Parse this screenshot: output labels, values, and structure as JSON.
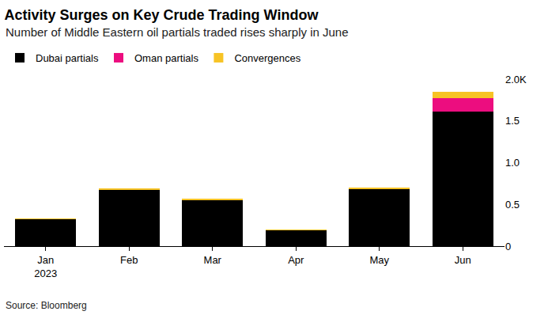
{
  "chart_data": {
    "type": "bar",
    "title": "Activity Surges on Key Crude Trading Window",
    "subtitle": "Number of Middle Eastern oil partials traded rises sharply in June",
    "source": "Source: Bloomberg",
    "categories": [
      "Jan\n2023",
      "Feb",
      "Mar",
      "Apr",
      "May",
      "Jun"
    ],
    "series": [
      {
        "name": "Dubai partials",
        "color": "#000000",
        "values": [
          0.32,
          0.67,
          0.55,
          0.19,
          0.68,
          1.61
        ]
      },
      {
        "name": "Oman partials",
        "color": "#ec0d7f",
        "values": [
          0,
          0,
          0,
          0,
          0,
          0.16
        ]
      },
      {
        "name": "Convergences",
        "color": "#f7c325",
        "values": [
          0.01,
          0.02,
          0.02,
          0.01,
          0.02,
          0.08
        ]
      }
    ],
    "stacked": true,
    "ylim": [
      0,
      2
    ],
    "yticks": [
      0,
      0.5,
      {
        "value": 1,
        "label": "1.0"
      },
      1.5,
      {
        "value": 2,
        "label": "2.0K"
      }
    ],
    "grid": false,
    "legend": "top-left",
    "data_labels": false
  }
}
